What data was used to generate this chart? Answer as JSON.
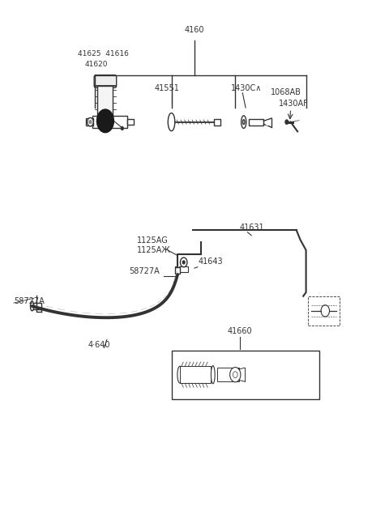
{
  "bg_color": "#ffffff",
  "line_color": "#333333",
  "fig_width": 4.8,
  "fig_height": 6.57,
  "dpi": 100,
  "labels": {
    "4610": "4160",
    "41625_41616": "41625  41616",
    "41620": "41620",
    "41551": "41551",
    "1430C": "1430C∧",
    "1068AB": "1068AB",
    "1430AF": "1430AF",
    "41631": "41631",
    "1125AG": "1125AG",
    "1125A3": "1125AЖ",
    "41643": "41643",
    "58727A_top": "58727A",
    "58727A_left": "58727A",
    "41640": "4·640",
    "41660": "41660"
  }
}
